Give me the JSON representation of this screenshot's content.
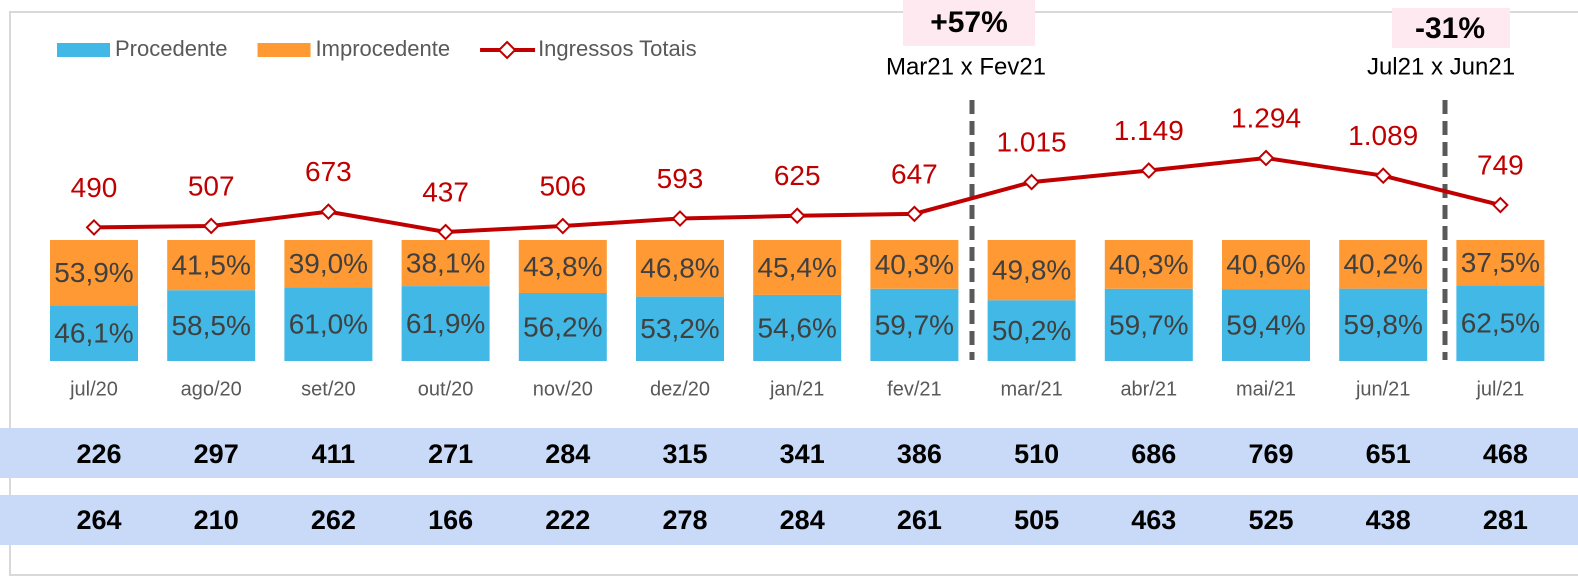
{
  "chart_data": {
    "type": "bar",
    "stacked": true,
    "categories": [
      "jul/20",
      "ago/20",
      "set/20",
      "out/20",
      "nov/20",
      "dez/20",
      "jan/21",
      "fev/21",
      "mar/21",
      "abr/21",
      "mai/21",
      "jun/21",
      "jul/21"
    ],
    "series": [
      {
        "name": "Procedente",
        "color": "#41b8e6",
        "values": [
          46.1,
          58.5,
          61.0,
          61.9,
          56.2,
          53.2,
          54.6,
          59.7,
          50.2,
          59.7,
          59.4,
          59.8,
          62.5
        ],
        "value_labels": [
          "46,1%",
          "58,5%",
          "61,0%",
          "61,9%",
          "56,2%",
          "53,2%",
          "54,6%",
          "59,7%",
          "50,2%",
          "59,7%",
          "59,4%",
          "59,8%",
          "62,5%"
        ]
      },
      {
        "name": "Improcedente",
        "color": "#ff9933",
        "values": [
          53.9,
          41.5,
          39.0,
          38.1,
          43.8,
          46.8,
          45.4,
          40.3,
          49.8,
          40.3,
          40.6,
          40.2,
          37.5
        ],
        "value_labels": [
          "53,9%",
          "41,5%",
          "39,0%",
          "38,1%",
          "43,8%",
          "46,8%",
          "45,4%",
          "40,3%",
          "49,8%",
          "40,3%",
          "40,6%",
          "40,2%",
          "37,5%"
        ]
      },
      {
        "name": "Ingressos Totais",
        "type": "line",
        "color": "#c00000",
        "values": [
          490,
          507,
          673,
          437,
          506,
          593,
          625,
          647,
          1015,
          1149,
          1294,
          1089,
          749
        ],
        "value_labels": [
          "490",
          "507",
          "673",
          "437",
          "506",
          "593",
          "625",
          "647",
          "1.015",
          "1.149",
          "1.294",
          "1.089",
          "749"
        ]
      }
    ],
    "annotations": [
      {
        "text": "+57%",
        "label": "Mar21 x Fev21"
      },
      {
        "text": "-31%",
        "label": "Jul21 x Jun21"
      }
    ],
    "table_rows": [
      [
        226,
        297,
        411,
        271,
        284,
        315,
        341,
        386,
        510,
        686,
        769,
        651,
        468
      ],
      [
        264,
        210,
        262,
        166,
        222,
        278,
        284,
        261,
        505,
        463,
        525,
        438,
        281
      ]
    ]
  }
}
